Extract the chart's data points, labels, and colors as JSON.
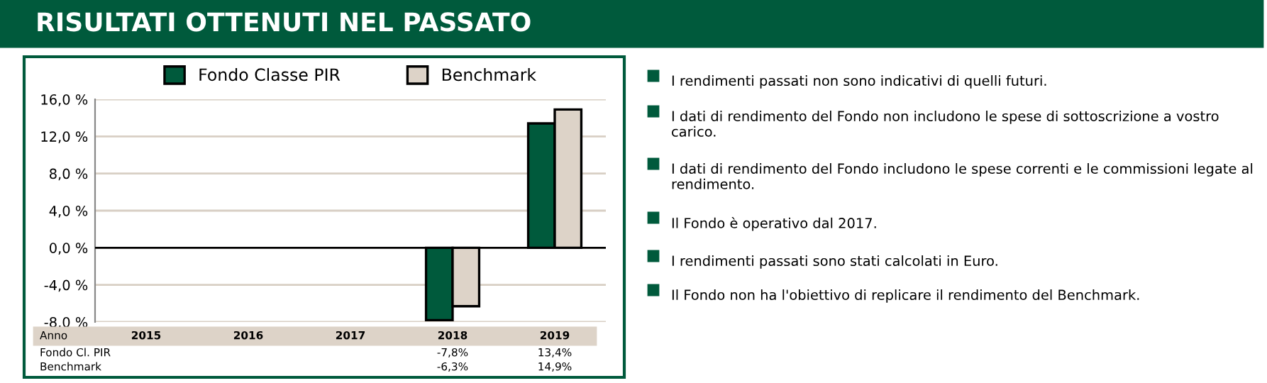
{
  "chart_data": {
    "type": "bar",
    "title": "RISULTATI OTTENUTI NEL PASSATO",
    "categories": [
      "2015",
      "2016",
      "2017",
      "2018",
      "2019"
    ],
    "series": [
      {
        "name": "Fondo Classe PIR",
        "color": "#005a3c",
        "values": [
          null,
          null,
          null,
          -7.8,
          13.4
        ],
        "value_labels": [
          null,
          null,
          null,
          "-7,8%",
          "13,4%"
        ]
      },
      {
        "name": "Benchmark",
        "color": "#ddd3c8",
        "values": [
          null,
          null,
          null,
          -6.3,
          14.9
        ],
        "value_labels": [
          null,
          null,
          null,
          "-6,3%",
          "14,9%"
        ]
      }
    ],
    "ylim": [
      -8,
      16
    ],
    "yticks": [
      {
        "value": -8,
        "label": "-8,0 %"
      },
      {
        "value": -4,
        "label": "-4,0 %"
      },
      {
        "value": 0,
        "label": "0,0 %"
      },
      {
        "value": 4,
        "label": "4,0 %"
      },
      {
        "value": 8,
        "label": "8,0 %"
      },
      {
        "value": 12,
        "label": "12,0 %"
      },
      {
        "value": 16,
        "label": "16,0 %"
      }
    ],
    "grid": "y",
    "legend": "top",
    "annotations": [
      "Anno",
      "Fondo Cl. PIR",
      "Benchmark",
      "I rendimenti passati non sono indicativi di quelli futuri.",
      "I dati di rendimento del Fondo non includono le spese di sottoscrizione a vostro carico.",
      "I dati di rendimento del Fondo includono le spese correnti e le commissioni legate al rendimento.",
      "Il Fondo è operativo dal 2017.",
      "I rendimenti passati sono stati calcolati in Euro.",
      "Il Fondo non ha l'obiettivo di replicare il rendimento del Benchmark."
    ]
  }
}
